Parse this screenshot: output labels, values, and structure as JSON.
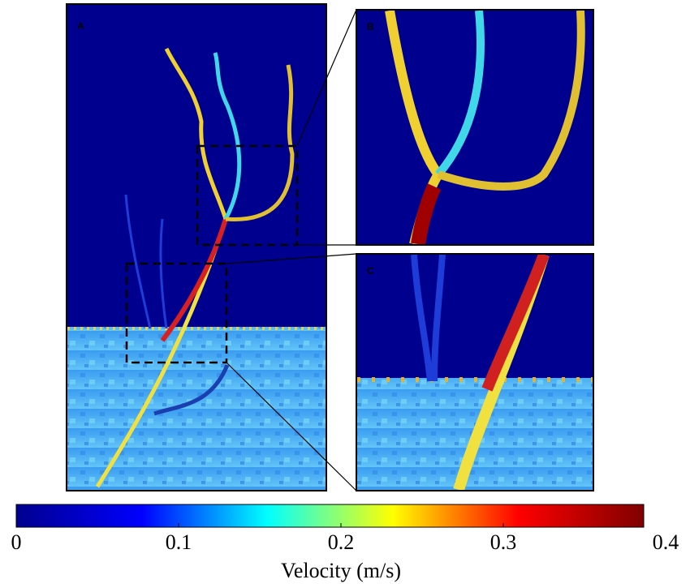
{
  "chart_data": {
    "type": "colorbar",
    "panels": [
      "A",
      "B",
      "C"
    ],
    "xlabel": "Velocity (m/s)",
    "xlim": [
      0,
      0.4
    ],
    "xticks": [
      0,
      0.1,
      0.2,
      0.3,
      0.4
    ],
    "colormap": [
      "#00008f",
      "#0000ff",
      "#00ffff",
      "#ffff00",
      "#ff0000",
      "#800000"
    ]
  }
}
